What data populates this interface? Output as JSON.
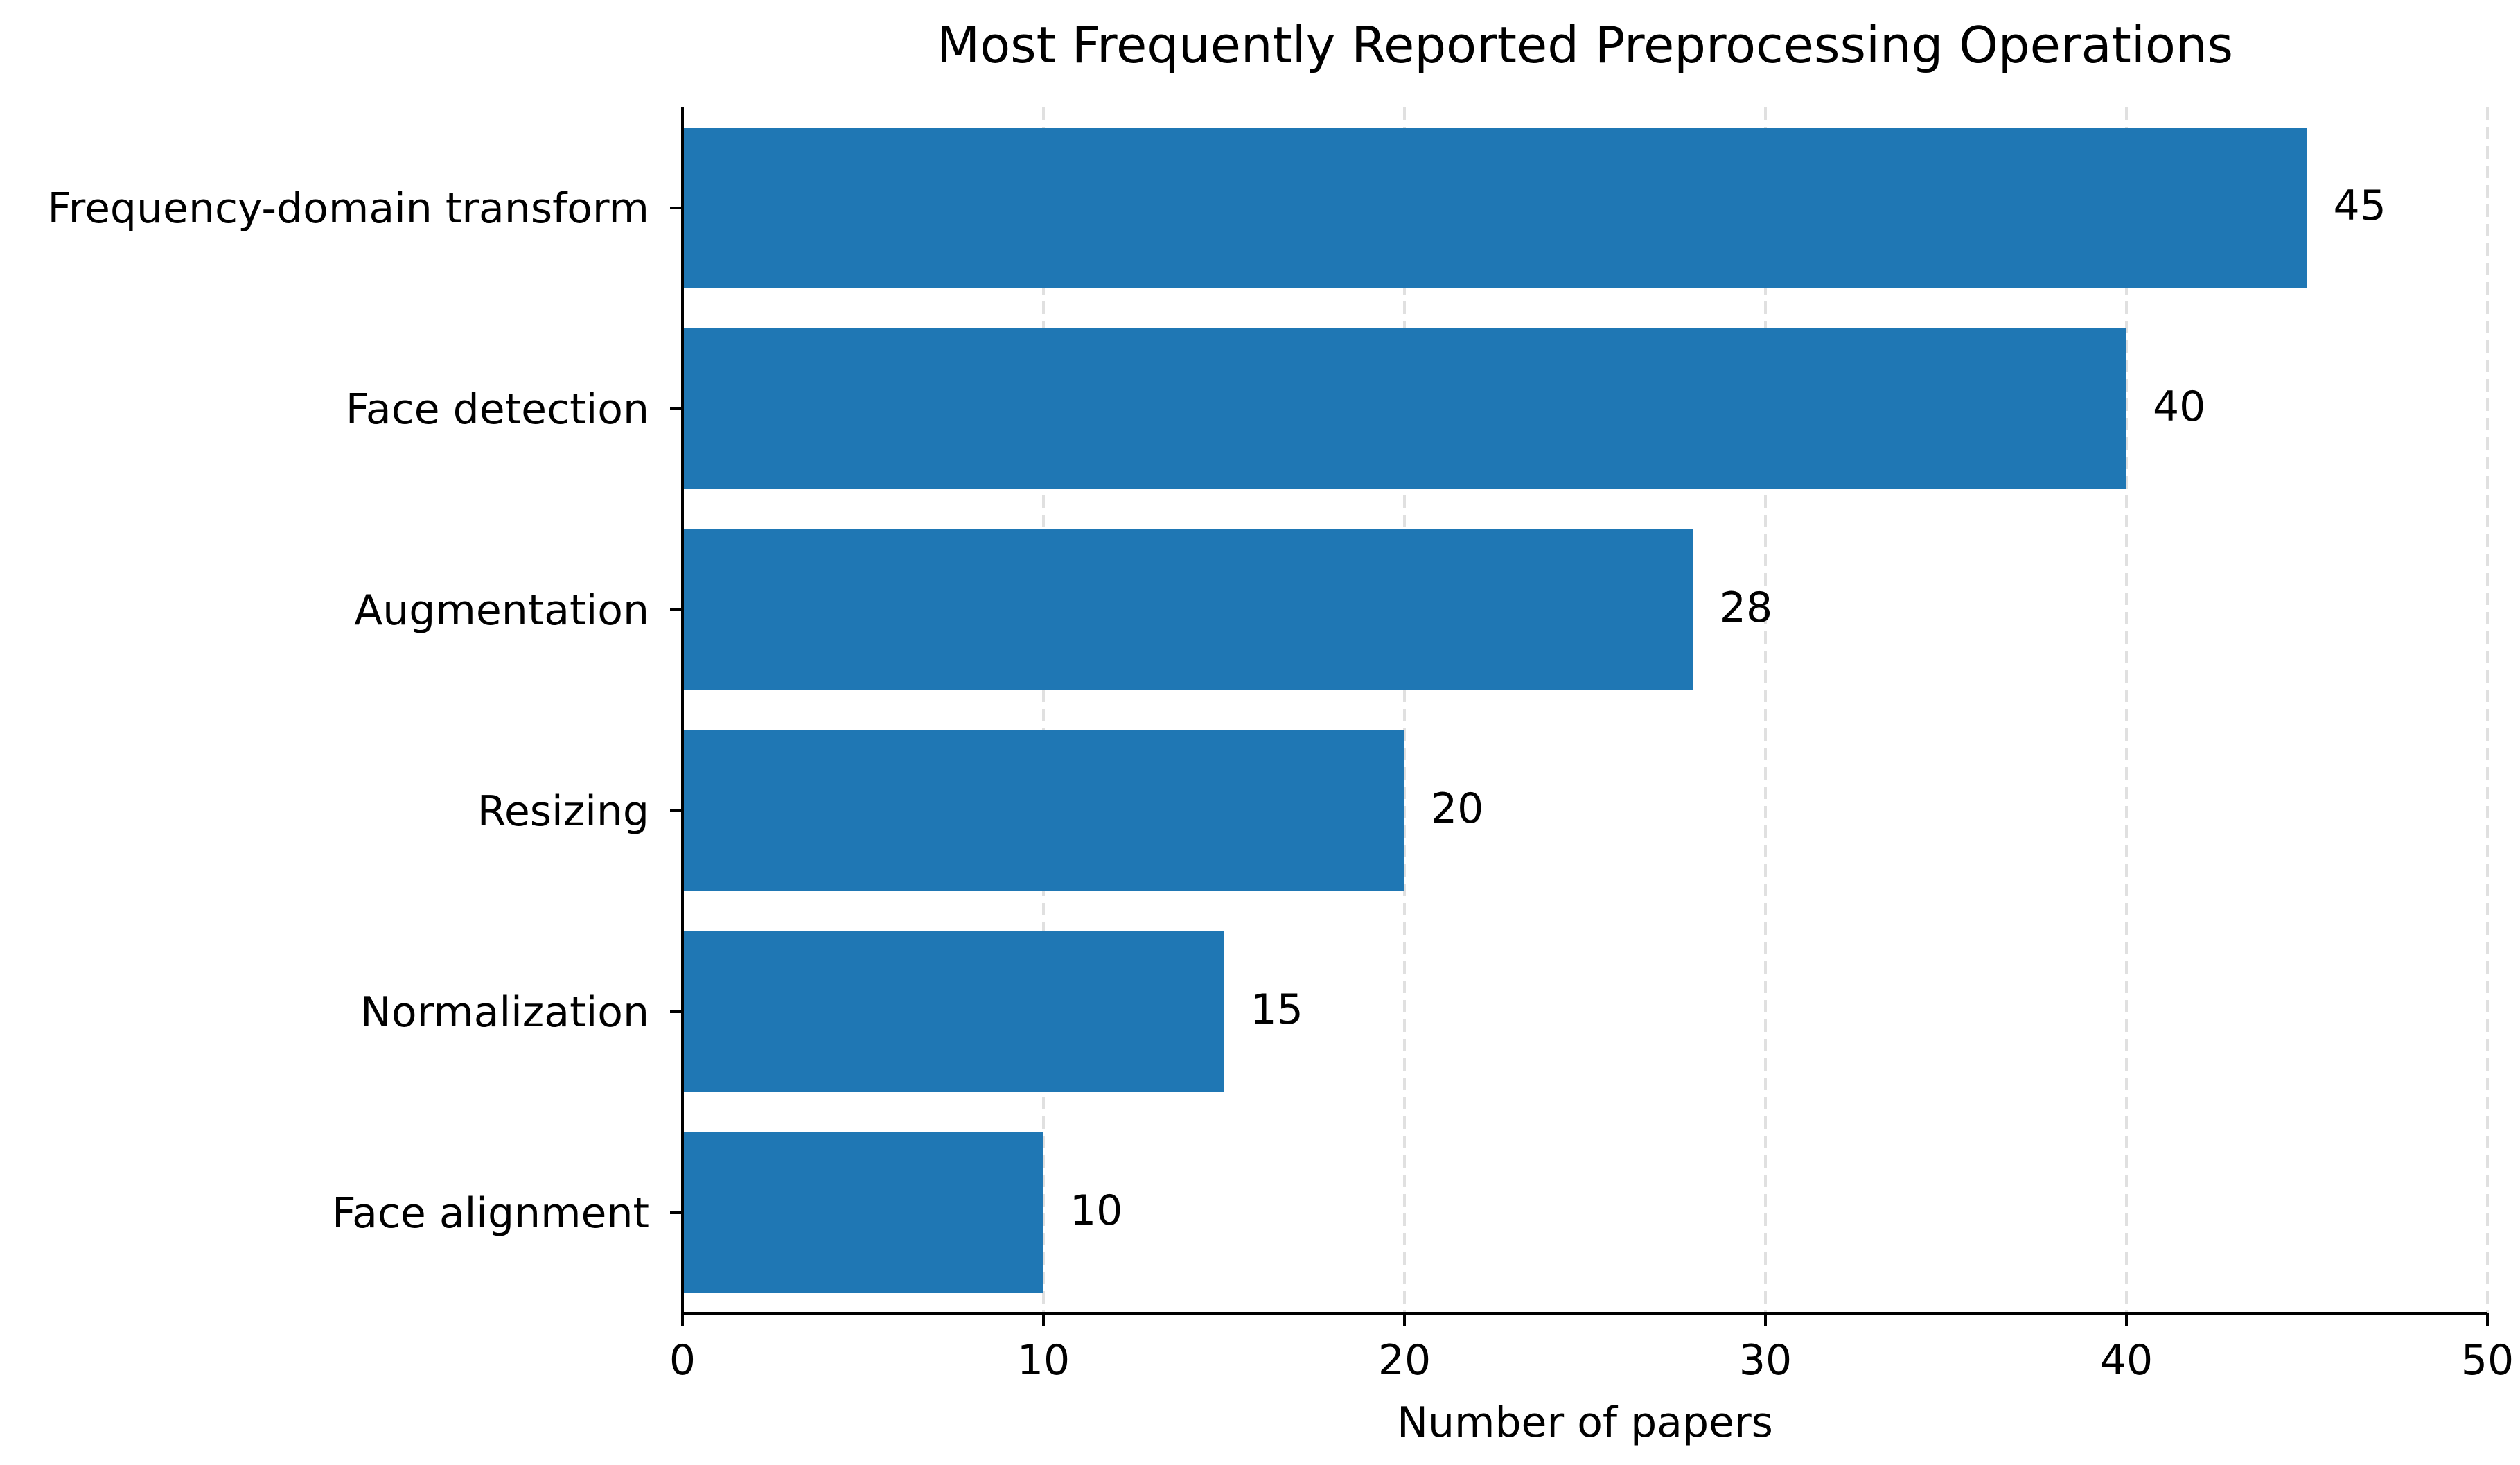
{
  "chart_data": {
    "type": "bar",
    "orientation": "horizontal",
    "title": "Most Frequently Reported Preprocessing Operations",
    "xlabel": "Number of papers",
    "ylabel": "",
    "categories": [
      "Frequency-domain transform",
      "Face detection",
      "Augmentation",
      "Resizing",
      "Normalization",
      "Face alignment"
    ],
    "values": [
      45,
      40,
      28,
      20,
      15,
      10
    ],
    "data_labels": [
      "45",
      "40",
      "28",
      "20",
      "15",
      "10"
    ],
    "xlim": [
      0,
      50
    ],
    "x_ticks": [
      0,
      10,
      20,
      30,
      40,
      50
    ],
    "x_tick_labels": [
      "0",
      "10",
      "20",
      "30",
      "40",
      "50"
    ],
    "grid": "vertical dashed",
    "legend": "none",
    "bar_color": "#1f77b4"
  }
}
